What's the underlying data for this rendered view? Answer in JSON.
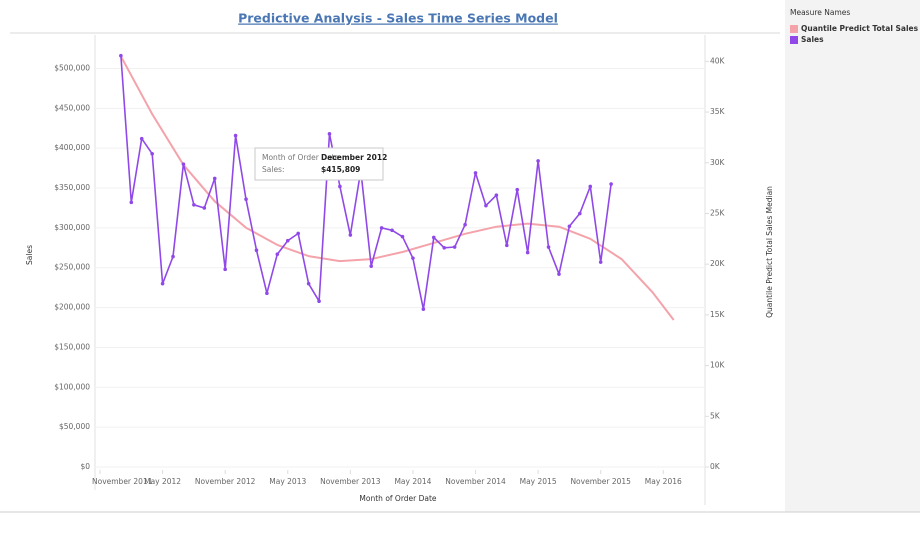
{
  "chart_data": {
    "type": "line",
    "title": "Predictive Analysis - Sales Time Series Model",
    "x_label": "Month of Order Date",
    "y_label": "Sales",
    "y2_label": "Quantile Predict Total Sales Median",
    "legend_title": "Measure Names",
    "legend": "right",
    "grid": true,
    "xlim": [
      "2011-11",
      "2016-09"
    ],
    "xticks": [
      {
        "value": "2011-11",
        "label": "November 2011"
      },
      {
        "value": "2012-05",
        "label": "May 2012"
      },
      {
        "value": "2012-11",
        "label": "November 2012"
      },
      {
        "value": "2013-05",
        "label": "May 2013"
      },
      {
        "value": "2013-11",
        "label": "November 2013"
      },
      {
        "value": "2014-05",
        "label": "May 2014"
      },
      {
        "value": "2014-11",
        "label": "November 2014"
      },
      {
        "value": "2015-05",
        "label": "May 2015"
      },
      {
        "value": "2015-11",
        "label": "November 2015"
      },
      {
        "value": "2016-05",
        "label": "May 2016"
      }
    ],
    "ylim": [
      0,
      542000
    ],
    "yticks": [
      {
        "value": 0,
        "label": "$0"
      },
      {
        "value": 50000,
        "label": "$50,000"
      },
      {
        "value": 100000,
        "label": "$100,000"
      },
      {
        "value": 150000,
        "label": "$150,000"
      },
      {
        "value": 200000,
        "label": "$200,000"
      },
      {
        "value": 250000,
        "label": "$250,000"
      },
      {
        "value": 300000,
        "label": "$300,000"
      },
      {
        "value": 350000,
        "label": "$350,000"
      },
      {
        "value": 400000,
        "label": "$400,000"
      },
      {
        "value": 450000,
        "label": "$450,000"
      },
      {
        "value": 500000,
        "label": "$500,000"
      }
    ],
    "y2lim": [
      0,
      42600
    ],
    "y2ticks": [
      {
        "value": 0,
        "label": "0K"
      },
      {
        "value": 5000,
        "label": "5K"
      },
      {
        "value": 10000,
        "label": "10K"
      },
      {
        "value": 15000,
        "label": "15K"
      },
      {
        "value": 20000,
        "label": "20K"
      },
      {
        "value": 25000,
        "label": "25K"
      },
      {
        "value": 30000,
        "label": "30K"
      },
      {
        "value": 35000,
        "label": "35K"
      },
      {
        "value": 40000,
        "label": "40K"
      }
    ],
    "series": [
      {
        "name": "Quantile Predict Total Sales ..",
        "color": "#f4a3ab",
        "axis": "y2",
        "x": [
          "2012-01",
          "2012-04",
          "2012-07",
          "2012-10",
          "2013-01",
          "2013-04",
          "2013-07",
          "2013-10",
          "2014-01",
          "2014-04",
          "2014-07",
          "2014-10",
          "2015-01",
          "2015-04",
          "2015-07",
          "2015-10",
          "2016-01",
          "2016-04",
          "2016-06"
        ],
        "values": [
          40500,
          34800,
          29800,
          26200,
          23600,
          21900,
          20800,
          20300,
          20500,
          21200,
          22100,
          23000,
          23700,
          24000,
          23700,
          22500,
          20500,
          17200,
          14500
        ]
      },
      {
        "name": "Sales",
        "color": "#9049e8",
        "axis": "y",
        "x": [
          "2012-01",
          "2012-02",
          "2012-03",
          "2012-04",
          "2012-05",
          "2012-06",
          "2012-07",
          "2012-08",
          "2012-09",
          "2012-10",
          "2012-11",
          "2012-12",
          "2013-01",
          "2013-02",
          "2013-03",
          "2013-04",
          "2013-05",
          "2013-06",
          "2013-07",
          "2013-08",
          "2013-09",
          "2013-10",
          "2013-11",
          "2013-12",
          "2014-01",
          "2014-02",
          "2014-03",
          "2014-04",
          "2014-05",
          "2014-06",
          "2014-07",
          "2014-08",
          "2014-09",
          "2014-10",
          "2014-11",
          "2014-12",
          "2015-01",
          "2015-02",
          "2015-03",
          "2015-04",
          "2015-05",
          "2015-06",
          "2015-07",
          "2015-08",
          "2015-09",
          "2015-10",
          "2015-11",
          "2015-12"
        ],
        "values": [
          516000,
          332000,
          412000,
          393000,
          230000,
          264000,
          380000,
          329000,
          325000,
          362000,
          248000,
          415809,
          336000,
          272000,
          218000,
          267000,
          284000,
          293000,
          230000,
          208000,
          418000,
          352000,
          291000,
          372000,
          252000,
          300000,
          297000,
          289000,
          262000,
          198000,
          288000,
          275000,
          276000,
          304000,
          369000,
          328000,
          341000,
          278000,
          348000,
          269000,
          384000,
          276000,
          242000,
          302000,
          318000,
          352000,
          257000,
          355000
        ]
      }
    ],
    "tooltip": {
      "month_label": "Month of Order Date:",
      "month": "December 2012",
      "sales_label": "Sales:",
      "sales": "$415,809"
    }
  }
}
